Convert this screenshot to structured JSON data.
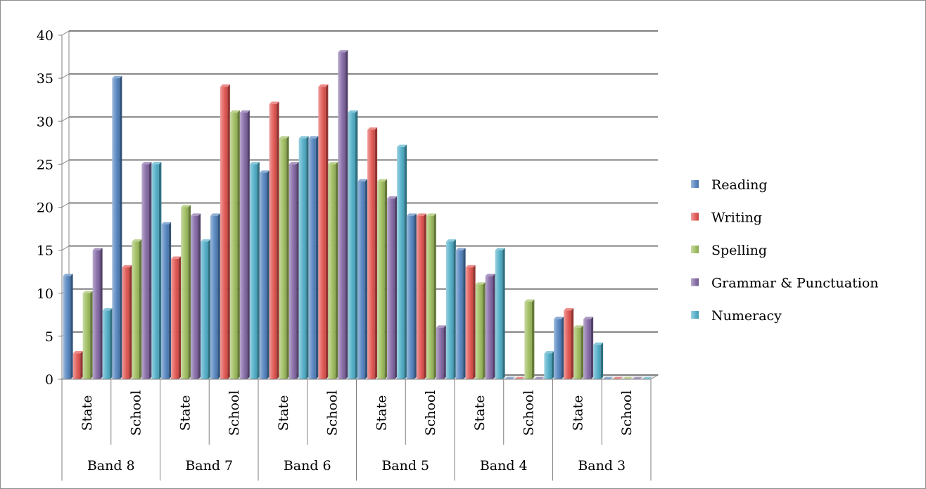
{
  "chart_data": {
    "type": "bar",
    "variant": "3d-clustered-column",
    "title": "",
    "xlabel": "",
    "ylabel": "",
    "ylim": [
      0,
      40
    ],
    "yticks": [
      "0",
      "5",
      "10",
      "15",
      "20",
      "25",
      "30",
      "35",
      "40"
    ],
    "categories": [
      "State",
      "School",
      "State",
      "School",
      "State",
      "School",
      "State",
      "School",
      "State",
      "School",
      "State",
      "School"
    ],
    "groups": [
      "Band 8",
      "Band 7",
      "Band 6",
      "Band 5",
      "Band 4",
      "Band 3"
    ],
    "grid": true,
    "legend_position": "right",
    "series": [
      {
        "name": "Reading",
        "color": "#4f81bd",
        "values": [
          12,
          35,
          18,
          19,
          24,
          28,
          23,
          19,
          15,
          0,
          7,
          0
        ]
      },
      {
        "name": "Writing",
        "color": "#e0504c",
        "values": [
          3,
          13,
          14,
          34,
          32,
          34,
          29,
          19,
          13,
          0,
          8,
          0
        ]
      },
      {
        "name": "Spelling",
        "color": "#9bbb59",
        "values": [
          10,
          16,
          20,
          31,
          28,
          25,
          23,
          19,
          11,
          9,
          6,
          0
        ]
      },
      {
        "name": "Grammar & Punctuation",
        "color": "#8064a2",
        "values": [
          15,
          25,
          19,
          31,
          25,
          38,
          21,
          6,
          12,
          0,
          7,
          0
        ]
      },
      {
        "name": "Numeracy",
        "color": "#4bacc6",
        "values": [
          8,
          25,
          16,
          25,
          28,
          31,
          27,
          16,
          15,
          3,
          4,
          0
        ]
      }
    ]
  }
}
